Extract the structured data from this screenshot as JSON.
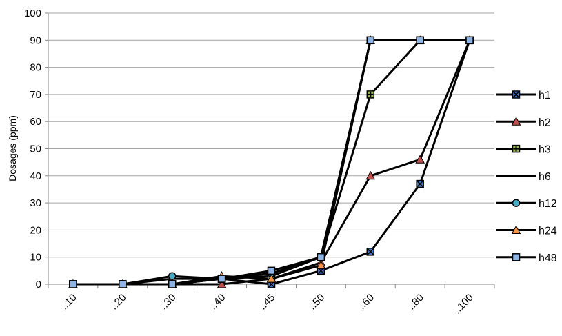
{
  "chart_data": {
    "type": "line",
    "title": "",
    "xlabel": "",
    "ylabel": "Dosages (ppm)",
    "ylim": [
      0,
      100
    ],
    "yticks": [
      0,
      10,
      20,
      30,
      40,
      50,
      60,
      70,
      80,
      90,
      100
    ],
    "ytick_labels": [
      "0",
      "10",
      "20",
      "30",
      "40",
      "50",
      "60",
      "70",
      "80",
      "90",
      "100"
    ],
    "grid": true,
    "legend_position": "right",
    "categories": [
      "..10",
      "..20",
      "..30",
      "..40",
      "..45",
      "..50",
      "..60",
      "..80",
      "..100"
    ],
    "series": [
      {
        "name": "h1",
        "marker": "x-square",
        "marker_fill": "#4472c4",
        "values": [
          0,
          0,
          0,
          2,
          0,
          5,
          12,
          37,
          90
        ]
      },
      {
        "name": "h2",
        "marker": "triangle",
        "marker_fill": "#c0504d",
        "values": [
          0,
          0,
          0,
          0,
          2,
          8,
          40,
          46,
          90
        ]
      },
      {
        "name": "h3",
        "marker": "plus",
        "marker_fill": "#9bbb59",
        "values": [
          0,
          0,
          0,
          2,
          3,
          10,
          70,
          90,
          90
        ]
      },
      {
        "name": "h6",
        "marker": "none",
        "marker_fill": "#000000",
        "values": [
          0,
          0,
          2,
          2,
          4,
          10,
          90,
          90,
          90
        ]
      },
      {
        "name": "h12",
        "marker": "circle",
        "marker_fill": "#4bacc6",
        "values": [
          0,
          0,
          3,
          2,
          4,
          10,
          90,
          90,
          90
        ]
      },
      {
        "name": "h24",
        "marker": "triangle",
        "marker_fill": "#f79646",
        "values": [
          0,
          0,
          0,
          3,
          2,
          7,
          90,
          90,
          90
        ]
      },
      {
        "name": "h48",
        "marker": "square",
        "marker_fill": "#8eb4e3",
        "values": [
          0,
          0,
          0,
          2,
          5,
          10,
          90,
          90,
          90
        ]
      }
    ]
  }
}
